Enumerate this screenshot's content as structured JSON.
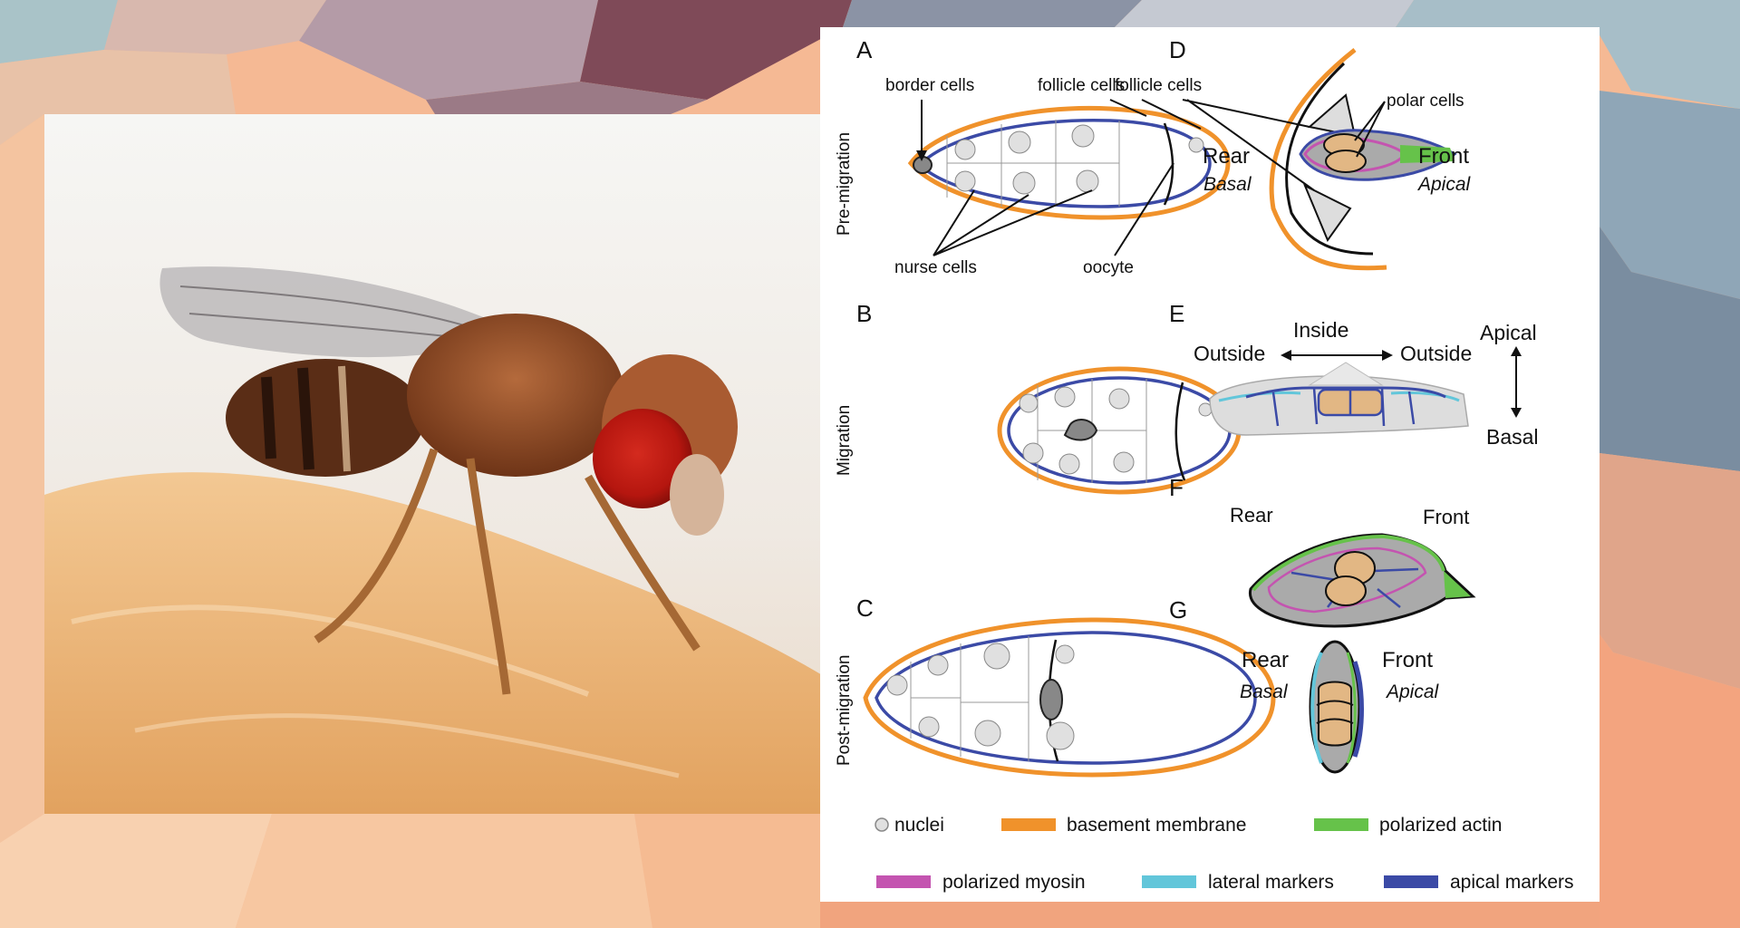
{
  "figure": {
    "panels": {
      "A": {
        "letter": "A",
        "row_label": "Pre-migration",
        "border_cells": "border cells",
        "follicle_cells": "follicle cells",
        "nurse_cells": "nurse cells",
        "oocyte": "oocyte"
      },
      "B": {
        "letter": "B",
        "row_label": "Migration"
      },
      "C": {
        "letter": "C",
        "row_label": "Post-migration"
      },
      "D": {
        "letter": "D",
        "follicle_cells": "follicle cells",
        "polar_cells": "polar cells",
        "rear": "Rear",
        "basal": "Basal",
        "front": "Front",
        "apical": "Apical"
      },
      "E": {
        "letter": "E",
        "inside": "Inside",
        "outside_left": "Outside",
        "outside_right": "Outside",
        "apical": "Apical",
        "basal": "Basal"
      },
      "F": {
        "letter": "F",
        "rear": "Rear",
        "front": "Front"
      },
      "G": {
        "letter": "G",
        "rear": "Rear",
        "basal": "Basal",
        "front": "Front",
        "apical": "Apical"
      }
    },
    "legend": {
      "nuclei": "nuclei",
      "basement_membrane": "basement membrane",
      "polarized_actin": "polarized actin",
      "polarized_myosin": "polarized myosin",
      "lateral_markers": "lateral markers",
      "apical_markers": "apical markers"
    },
    "colors": {
      "basement_membrane": "#f0922b",
      "polarized_actin": "#66c24a",
      "polarized_myosin": "#c454b0",
      "lateral_markers": "#62c6da",
      "apical_markers": "#3b4aa6",
      "cluster": "#e2b784",
      "nuclei": "#e0e0e0"
    }
  }
}
